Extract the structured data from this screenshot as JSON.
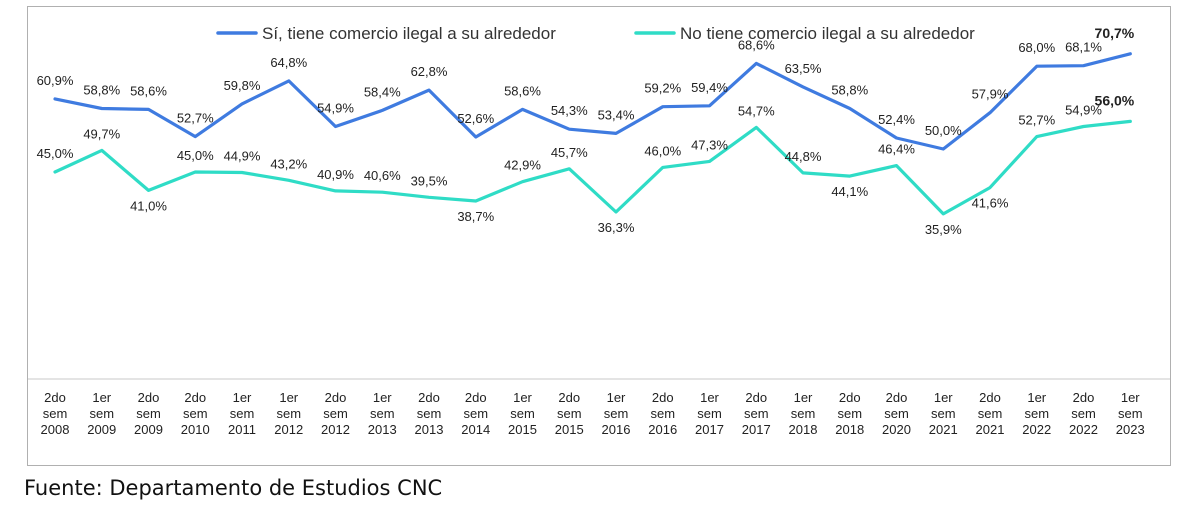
{
  "chart_data": {
    "type": "line",
    "title": "",
    "xlabel": "",
    "ylabel": "",
    "categories": [
      [
        "2do",
        "sem",
        "2008"
      ],
      [
        "1er",
        "sem",
        "2009"
      ],
      [
        "2do",
        "sem",
        "2009"
      ],
      [
        "2do",
        "sem",
        "2010"
      ],
      [
        "1er",
        "sem",
        "2011"
      ],
      [
        "1er",
        "sem",
        "2012"
      ],
      [
        "2do",
        "sem",
        "2012"
      ],
      [
        "1er",
        "sem",
        "2013"
      ],
      [
        "2do",
        "sem",
        "2013"
      ],
      [
        "2do",
        "sem",
        "2014"
      ],
      [
        "1er",
        "sem",
        "2015"
      ],
      [
        "2do",
        "sem",
        "2015"
      ],
      [
        "1er",
        "sem",
        "2016"
      ],
      [
        "2do",
        "sem",
        "2016"
      ],
      [
        "1er",
        "sem",
        "2017"
      ],
      [
        "2do",
        "sem",
        "2017"
      ],
      [
        "1er",
        "sem",
        "2018"
      ],
      [
        "2do",
        "sem",
        "2018"
      ],
      [
        "2do",
        "sem",
        "2020"
      ],
      [
        "1er",
        "sem",
        "2021"
      ],
      [
        "2do",
        "sem",
        "2021"
      ],
      [
        "1er",
        "sem",
        "2022"
      ],
      [
        "2do",
        "sem",
        "2022"
      ],
      [
        "1er",
        "sem",
        "2023"
      ]
    ],
    "ylim": [
      0,
      80
    ],
    "grid": false,
    "legend_position": "top",
    "series": [
      {
        "name": "Sí, tiene comercio ilegal a su alrededor",
        "color": "#3f7be0",
        "values": [
          60.9,
          58.8,
          58.6,
          52.7,
          59.8,
          64.8,
          54.9,
          58.4,
          62.8,
          52.6,
          58.6,
          54.3,
          53.4,
          59.2,
          59.4,
          68.6,
          63.5,
          58.8,
          52.4,
          50.0,
          57.9,
          68.0,
          68.1,
          70.7
        ],
        "labels": [
          "60,9%",
          "58,8%",
          "58,6%",
          "52,7%",
          "59,8%",
          "64,8%",
          "54,9%",
          "58,4%",
          "62,8%",
          "52,6%",
          "58,6%",
          "54,3%",
          "53,4%",
          "59,2%",
          "59,4%",
          "68,6%",
          "63,5%",
          "58,8%",
          "52,4%",
          "50,0%",
          "57,9%",
          "68,0%",
          "68,1%",
          "70,7%"
        ]
      },
      {
        "name": "No tiene comercio ilegal a su alrededor",
        "color": "#2fdcc6",
        "values": [
          45.0,
          49.7,
          41.0,
          45.0,
          44.9,
          43.2,
          40.9,
          40.6,
          39.5,
          38.7,
          42.9,
          45.7,
          36.3,
          46.0,
          47.3,
          54.7,
          44.8,
          44.1,
          46.4,
          35.9,
          41.6,
          52.7,
          54.9,
          56.0
        ],
        "labels": [
          "45,0%",
          "49,7%",
          "41,0%",
          "45,0%",
          "44,9%",
          "43,2%",
          "40,9%",
          "40,6%",
          "39,5%",
          "38,7%",
          "42,9%",
          "45,7%",
          "36,3%",
          "46,0%",
          "47,3%",
          "54,7%",
          "44,8%",
          "44,1%",
          "46,4%",
          "35,9%",
          "41,6%",
          "52,7%",
          "54,9%",
          "56,0%"
        ]
      }
    ]
  },
  "source": "Fuente: Departamento de Estudios CNC"
}
